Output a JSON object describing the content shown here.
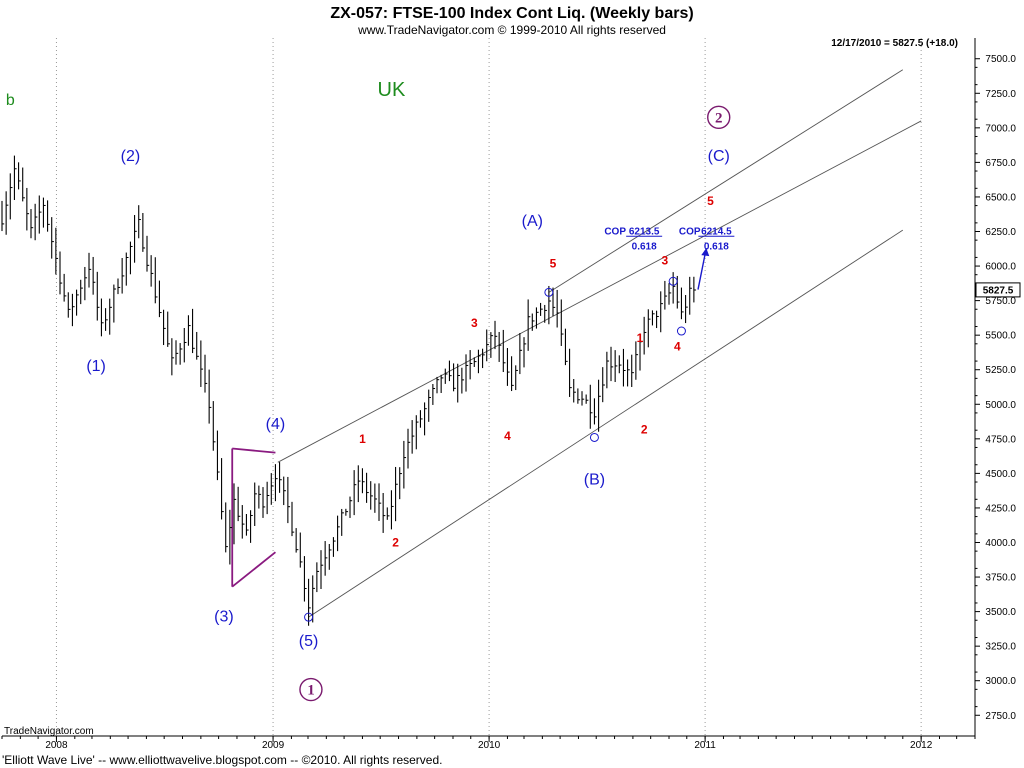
{
  "header": {
    "title": "ZX-057:  FTSE-100 Index Cont Liq.  (Weekly bars)",
    "copyright": "www.TradeNavigator.com © 1999-2010 All rights reserved",
    "last_quote": "12/17/2010 = 5827.5 (+18.0)"
  },
  "footer": {
    "brand": "TradeNavigator.com",
    "credit": "'Elliott Wave Live' -- www.elliottwavelive.blogspot.com -- ©2010. All rights reserved."
  },
  "chart_data": {
    "type": "ohlc",
    "title": "ZX-057:  FTSE-100 Index Cont Liq.  (Weekly bars)",
    "x_axis": {
      "ticks": [
        "2008",
        "2009",
        "2010",
        "2011",
        "2012"
      ],
      "range": [
        "2007-10-01",
        "2012-04-01"
      ]
    },
    "y_axis": {
      "range": [
        2600,
        7650
      ],
      "ticks": [
        2750,
        3000,
        3250,
        3500,
        3750,
        4000,
        4250,
        4500,
        4750,
        5000,
        5250,
        5500,
        5750,
        6000,
        6250,
        6500,
        6750,
        7000,
        7250,
        7500
      ],
      "tick_labels": [
        "2750.0",
        "3000.0",
        "3250.0",
        "3500.0",
        "3750.0",
        "4000.0",
        "4250.0",
        "4500.0",
        "4750.0",
        "5000.0",
        "5250.0",
        "5500.0",
        "5750.0",
        "6000.0",
        "6250.0",
        "6500.0",
        "6750.0",
        "7000.0",
        "7250.0",
        "7500.0"
      ]
    },
    "last_price": 5827.5,
    "last_price_label": "5827.5",
    "anchors": [
      [
        "2007-10-01",
        6350
      ],
      [
        "2007-10-22",
        6700
      ],
      [
        "2007-11-19",
        6250
      ],
      [
        "2007-12-10",
        6450
      ],
      [
        "2008-01-21",
        5650
      ],
      [
        "2008-02-25",
        6000
      ],
      [
        "2008-03-17",
        5550
      ],
      [
        "2008-05-19",
        6300
      ],
      [
        "2008-07-14",
        5300
      ],
      [
        "2008-08-11",
        5550
      ],
      [
        "2008-09-15",
        5000
      ],
      [
        "2008-10-13",
        3950
      ],
      [
        "2008-10-27",
        4300
      ],
      [
        "2008-11-17",
        4050
      ],
      [
        "2008-12-01",
        4350
      ],
      [
        "2008-12-15",
        4300
      ],
      [
        "2009-01-05",
        4500
      ],
      [
        "2009-01-26",
        4250
      ],
      [
        "2009-02-16",
        3850
      ],
      [
        "2009-03-02",
        3550
      ],
      [
        "2009-03-16",
        3800
      ],
      [
        "2009-04-20",
        4100
      ],
      [
        "2009-05-25",
        4450
      ],
      [
        "2009-06-22",
        4300
      ],
      [
        "2009-07-13",
        4150
      ],
      [
        "2009-08-10",
        4650
      ],
      [
        "2009-09-07",
        4900
      ],
      [
        "2009-10-12",
        5200
      ],
      [
        "2009-11-02",
        5150
      ],
      [
        "2009-12-07",
        5300
      ],
      [
        "2010-01-11",
        5500
      ],
      [
        "2010-02-08",
        5100
      ],
      [
        "2010-03-08",
        5600
      ],
      [
        "2010-04-12",
        5750
      ],
      [
        "2010-04-26",
        5650
      ],
      [
        "2010-05-17",
        5100
      ],
      [
        "2010-06-07",
        5050
      ],
      [
        "2010-06-28",
        4950
      ],
      [
        "2010-07-19",
        5300
      ],
      [
        "2010-08-09",
        5300
      ],
      [
        "2010-08-30",
        5200
      ],
      [
        "2010-09-20",
        5550
      ],
      [
        "2010-10-18",
        5700
      ],
      [
        "2010-11-08",
        5850
      ],
      [
        "2010-11-22",
        5650
      ],
      [
        "2010-12-06",
        5800
      ],
      [
        "2010-12-17",
        5828
      ]
    ],
    "channels": [
      {
        "from": [
          "2009-03-02",
          3460
        ],
        "to": [
          "2011-12-01",
          6260
        ]
      },
      {
        "from": [
          "2009-01-09",
          4580
        ],
        "to": [
          "2012-01-01",
          7050
        ]
      },
      {
        "from": [
          "2010-04-12",
          5810
        ],
        "to": [
          "2011-12-01",
          7420
        ]
      }
    ],
    "triangle": [
      {
        "from": [
          "2008-10-24",
          4680
        ],
        "to": [
          "2009-01-05",
          4650
        ]
      },
      {
        "from": [
          "2008-10-24",
          4680
        ],
        "to": [
          "2008-10-24",
          3680
        ]
      },
      {
        "from": [
          "2008-10-24",
          3680
        ],
        "to": [
          "2009-01-05",
          3930
        ]
      }
    ],
    "circles": [
      [
        "2009-03-02",
        3460
      ],
      [
        "2010-04-12",
        5810
      ],
      [
        "2010-06-28",
        4760
      ],
      [
        "2010-11-08",
        5890
      ],
      [
        "2010-11-22",
        5530
      ]
    ],
    "arrow": {
      "from": [
        "2010-12-20",
        5830
      ],
      "to": [
        "2011-01-03",
        6130
      ]
    },
    "wave_labels": [
      {
        "text": "b",
        "style": "green",
        "x": "2007-10-15",
        "y": 7165
      },
      {
        "text": "(2)",
        "style": "blue",
        "x": "2008-05-05",
        "y": 6760
      },
      {
        "text": "(1)",
        "style": "blue",
        "x": "2008-03-08",
        "y": 5240
      },
      {
        "text": "(4)",
        "style": "blue",
        "x": "2009-01-05",
        "y": 4820
      },
      {
        "text": "(3)",
        "style": "blue",
        "x": "2008-10-10",
        "y": 3430
      },
      {
        "text": "(5)",
        "style": "blue",
        "x": "2009-03-02",
        "y": 3250
      },
      {
        "text": "(A)",
        "style": "blue",
        "x": "2010-03-15",
        "y": 6290
      },
      {
        "text": "(B)",
        "style": "blue",
        "x": "2010-06-28",
        "y": 4420
      },
      {
        "text": "(C)",
        "style": "blue",
        "x": "2011-01-24",
        "y": 6760
      },
      {
        "text": "1",
        "style": "red",
        "x": "2009-06-01",
        "y": 4720
      },
      {
        "text": "2",
        "style": "red",
        "x": "2009-07-27",
        "y": 3970
      },
      {
        "text": "3",
        "style": "red",
        "x": "2009-12-07",
        "y": 5560
      },
      {
        "text": "4",
        "style": "red",
        "x": "2010-02-01",
        "y": 4740
      },
      {
        "text": "5",
        "style": "red",
        "x": "2010-04-19",
        "y": 5990
      },
      {
        "text": "1",
        "style": "red",
        "x": "2010-09-13",
        "y": 5450
      },
      {
        "text": "2",
        "style": "red",
        "x": "2010-09-20",
        "y": 4790
      },
      {
        "text": "3",
        "style": "red",
        "x": "2010-10-25",
        "y": 6010
      },
      {
        "text": "4",
        "style": "red",
        "x": "2010-11-15",
        "y": 5390
      },
      {
        "text": "5",
        "style": "red",
        "x": "2011-01-10",
        "y": 6440
      }
    ],
    "cycle_labels": [
      {
        "text": "1",
        "x": "2009-03-06",
        "y": 2900
      },
      {
        "text": "2",
        "x": "2011-01-24",
        "y": 7040
      }
    ],
    "annotations": [
      {
        "text": "UK",
        "style": "uk",
        "x": "2009-07-20",
        "y": 7230
      },
      {
        "text": "COP",
        "style": "cop",
        "x": "2010-08-02",
        "y": 6230
      },
      {
        "text": "6213.5",
        "style": "cop",
        "x": "2010-09-20",
        "y": 6230,
        "underline": true
      },
      {
        "text": "0.618",
        "style": "cop",
        "x": "2010-09-20",
        "y": 6120
      },
      {
        "text": "COP",
        "style": "cop",
        "x": "2010-12-06",
        "y": 6230
      },
      {
        "text": "6214.5",
        "style": "cop",
        "x": "2011-01-20",
        "y": 6230,
        "underline": true
      },
      {
        "text": "0.618",
        "style": "cop",
        "x": "2011-01-20",
        "y": 6120
      }
    ]
  }
}
